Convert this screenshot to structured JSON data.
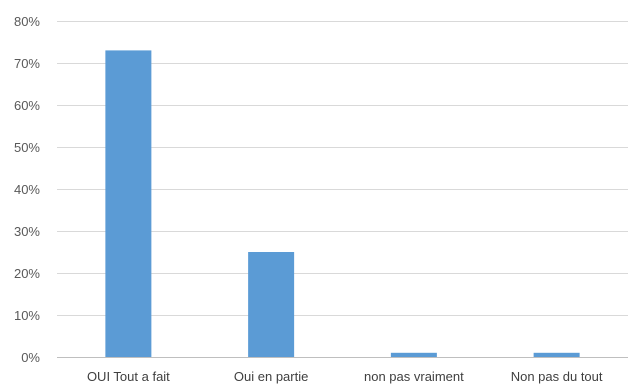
{
  "chart_data": {
    "type": "bar",
    "title": "",
    "xlabel": "",
    "ylabel": "",
    "categories": [
      "OUI Tout a fait",
      "Oui en partie",
      "non pas vraiment",
      "Non pas du tout"
    ],
    "values": [
      73,
      25,
      1,
      1
    ],
    "value_unit": "%",
    "ylim": [
      0,
      80
    ],
    "yticks": [
      0,
      10,
      20,
      30,
      40,
      50,
      60,
      70,
      80
    ],
    "ytick_labels": [
      "0%",
      "10%",
      "20%",
      "30%",
      "40%",
      "50%",
      "60%",
      "70%",
      "80%"
    ],
    "grid": true,
    "legend": "none",
    "bar_color": "#5b9bd5"
  }
}
